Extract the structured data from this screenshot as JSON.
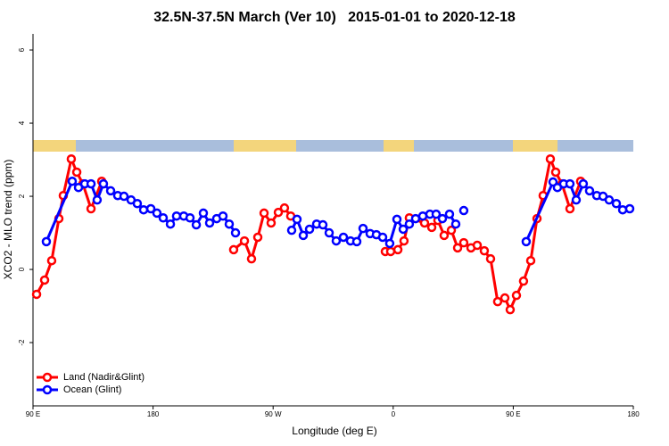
{
  "chart_data": {
    "type": "line",
    "title": "32.5N-37.5N March (Ver 10)   2015-01-01 to 2020-12-18",
    "xlabel": "Longitude (deg E)",
    "ylabel": "XCO2 - MLO trend (ppm)",
    "xlim": [
      90,
      540
    ],
    "ylim": [
      -3.73,
      6.44
    ],
    "xticks": [
      {
        "value": 90,
        "label": "90 E"
      },
      180,
      {
        "value": 270,
        "label": "90 W"
      },
      {
        "value": 360,
        "label": "0"
      },
      {
        "value": 450,
        "label": "90 E"
      },
      {
        "value": 540,
        "label": "180"
      }
    ],
    "yticks": [
      -2,
      0,
      2,
      4,
      6
    ],
    "legend": "bottomleft",
    "series": [
      {
        "name": "Land (Nadir&Glint)",
        "color": "#ff0000",
        "x": [
          92.7,
          98.7,
          104.0,
          109.4,
          112.7,
          118.7,
          122.8,
          127.4,
          133.5,
          141.5,
          null,
          240.4,
          248.5,
          253.8,
          258.5,
          263.2,
          268.5,
          273.9,
          278.5,
          283.2,
          null,
          354.1,
          358.1,
          363.5,
          368.1,
          372.1,
          383.5,
          388.9,
          393.5,
          398.2,
          403.6,
          408.3,
          412.9,
          418.3,
          423.0,
          428.3,
          433.0,
          438.3,
          443.7,
          447.7,
          452.4,
          457.7,
          463.1,
          467.8,
          472.4,
          477.8,
          481.8,
          486.5,
          492.5,
          500.5
        ],
        "values": [
          -0.68,
          -0.29,
          0.24,
          1.39,
          2.02,
          3.02,
          2.66,
          2.34,
          1.66,
          2.41,
          null,
          0.54,
          0.78,
          0.29,
          0.88,
          1.54,
          1.27,
          1.56,
          1.68,
          1.46,
          null,
          0.49,
          0.49,
          0.54,
          0.78,
          1.41,
          1.27,
          1.15,
          1.34,
          0.93,
          1.07,
          0.59,
          0.73,
          0.59,
          0.66,
          0.51,
          0.29,
          -0.88,
          -0.78,
          -1.1,
          -0.71,
          -0.32,
          0.24,
          1.39,
          2.02,
          3.02,
          2.66,
          2.34,
          1.66,
          2.41
        ]
      },
      {
        "name": "Ocean (Glint)",
        "color": "#0000ff",
        "x": [
          100.0,
          119.4,
          124.1,
          128.8,
          133.5,
          138.1,
          142.8,
          148.2,
          153.5,
          158.2,
          163.5,
          168.2,
          172.9,
          178.3,
          182.9,
          187.6,
          193.0,
          197.6,
          203.0,
          207.7,
          212.4,
          217.7,
          222.4,
          227.7,
          232.4,
          237.1,
          241.8,
          null,
          283.9,
          287.9,
          292.6,
          297.3,
          302.6,
          307.3,
          312.0,
          317.3,
          322.7,
          328.0,
          332.7,
          337.4,
          342.7,
          347.4,
          352.1,
          357.4,
          362.8,
          367.5,
          372.1,
          376.8,
          382.2,
          387.5,
          392.2,
          396.9,
          402.2,
          406.9,
          null,
          412.9,
          null,
          459.7,
          479.8,
          483.1,
          487.8,
          492.5,
          497.2,
          502.5,
          507.2,
          512.6,
          517.3,
          521.9,
          527.3,
          532.0,
          537.3
        ],
        "values": [
          0.76,
          2.41,
          2.24,
          2.34,
          2.34,
          1.9,
          2.34,
          2.15,
          2.02,
          2.0,
          1.9,
          1.8,
          1.63,
          1.66,
          1.54,
          1.41,
          1.24,
          1.46,
          1.46,
          1.41,
          1.22,
          1.54,
          1.27,
          1.39,
          1.46,
          1.24,
          1.0,
          null,
          1.07,
          1.37,
          0.93,
          1.1,
          1.24,
          1.22,
          1.0,
          0.78,
          0.88,
          0.78,
          0.76,
          1.12,
          0.98,
          0.95,
          0.88,
          0.71,
          1.37,
          1.1,
          1.24,
          1.39,
          1.46,
          1.51,
          1.51,
          1.39,
          1.51,
          1.24,
          null,
          1.61,
          null,
          0.76,
          2.39,
          2.24,
          2.34,
          2.34,
          1.9,
          2.34,
          2.15,
          2.02,
          2.0,
          1.9,
          1.8,
          1.63,
          1.66
        ]
      }
    ]
  }
}
